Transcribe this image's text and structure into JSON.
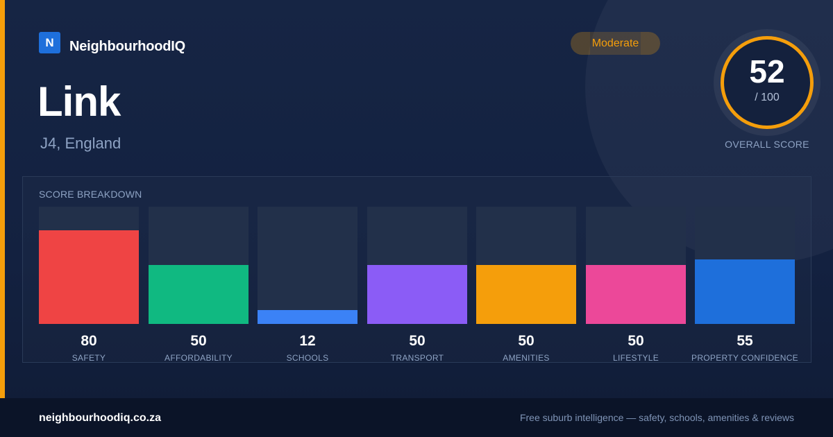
{
  "brand": {
    "logo_letter": "N",
    "name": "NeighbourhoodIQ",
    "color": "#1e6fdb"
  },
  "location": {
    "name": "Link",
    "region": "J4, England"
  },
  "rating_badge": {
    "label": "Moderate",
    "color": "#f59e0b"
  },
  "overall_score": {
    "value": "52",
    "max": "/ 100",
    "label": "OVERALL SCORE",
    "score": 52,
    "ring_color": "#f59e0b"
  },
  "breakdown": {
    "title": "SCORE BREAKDOWN"
  },
  "chart_data": {
    "type": "bar",
    "categories": [
      "SAFETY",
      "AFFORDABILITY",
      "SCHOOLS",
      "TRANSPORT",
      "AMENITIES",
      "LIFESTYLE",
      "PROPERTY CONFIDENCE"
    ],
    "values": [
      80,
      50,
      12,
      50,
      50,
      50,
      55
    ],
    "colors": [
      "#ef4444",
      "#10b981",
      "#3b82f6",
      "#8b5cf6",
      "#f59e0b",
      "#ec4899",
      "#1e6fdb"
    ],
    "ylim": [
      0,
      100
    ],
    "grid": false,
    "title": "SCORE BREAKDOWN"
  },
  "footer": {
    "domain": "neighbourhoodiq.co.za",
    "tagline": "Free suburb intelligence — safety, schools, amenities & reviews"
  }
}
